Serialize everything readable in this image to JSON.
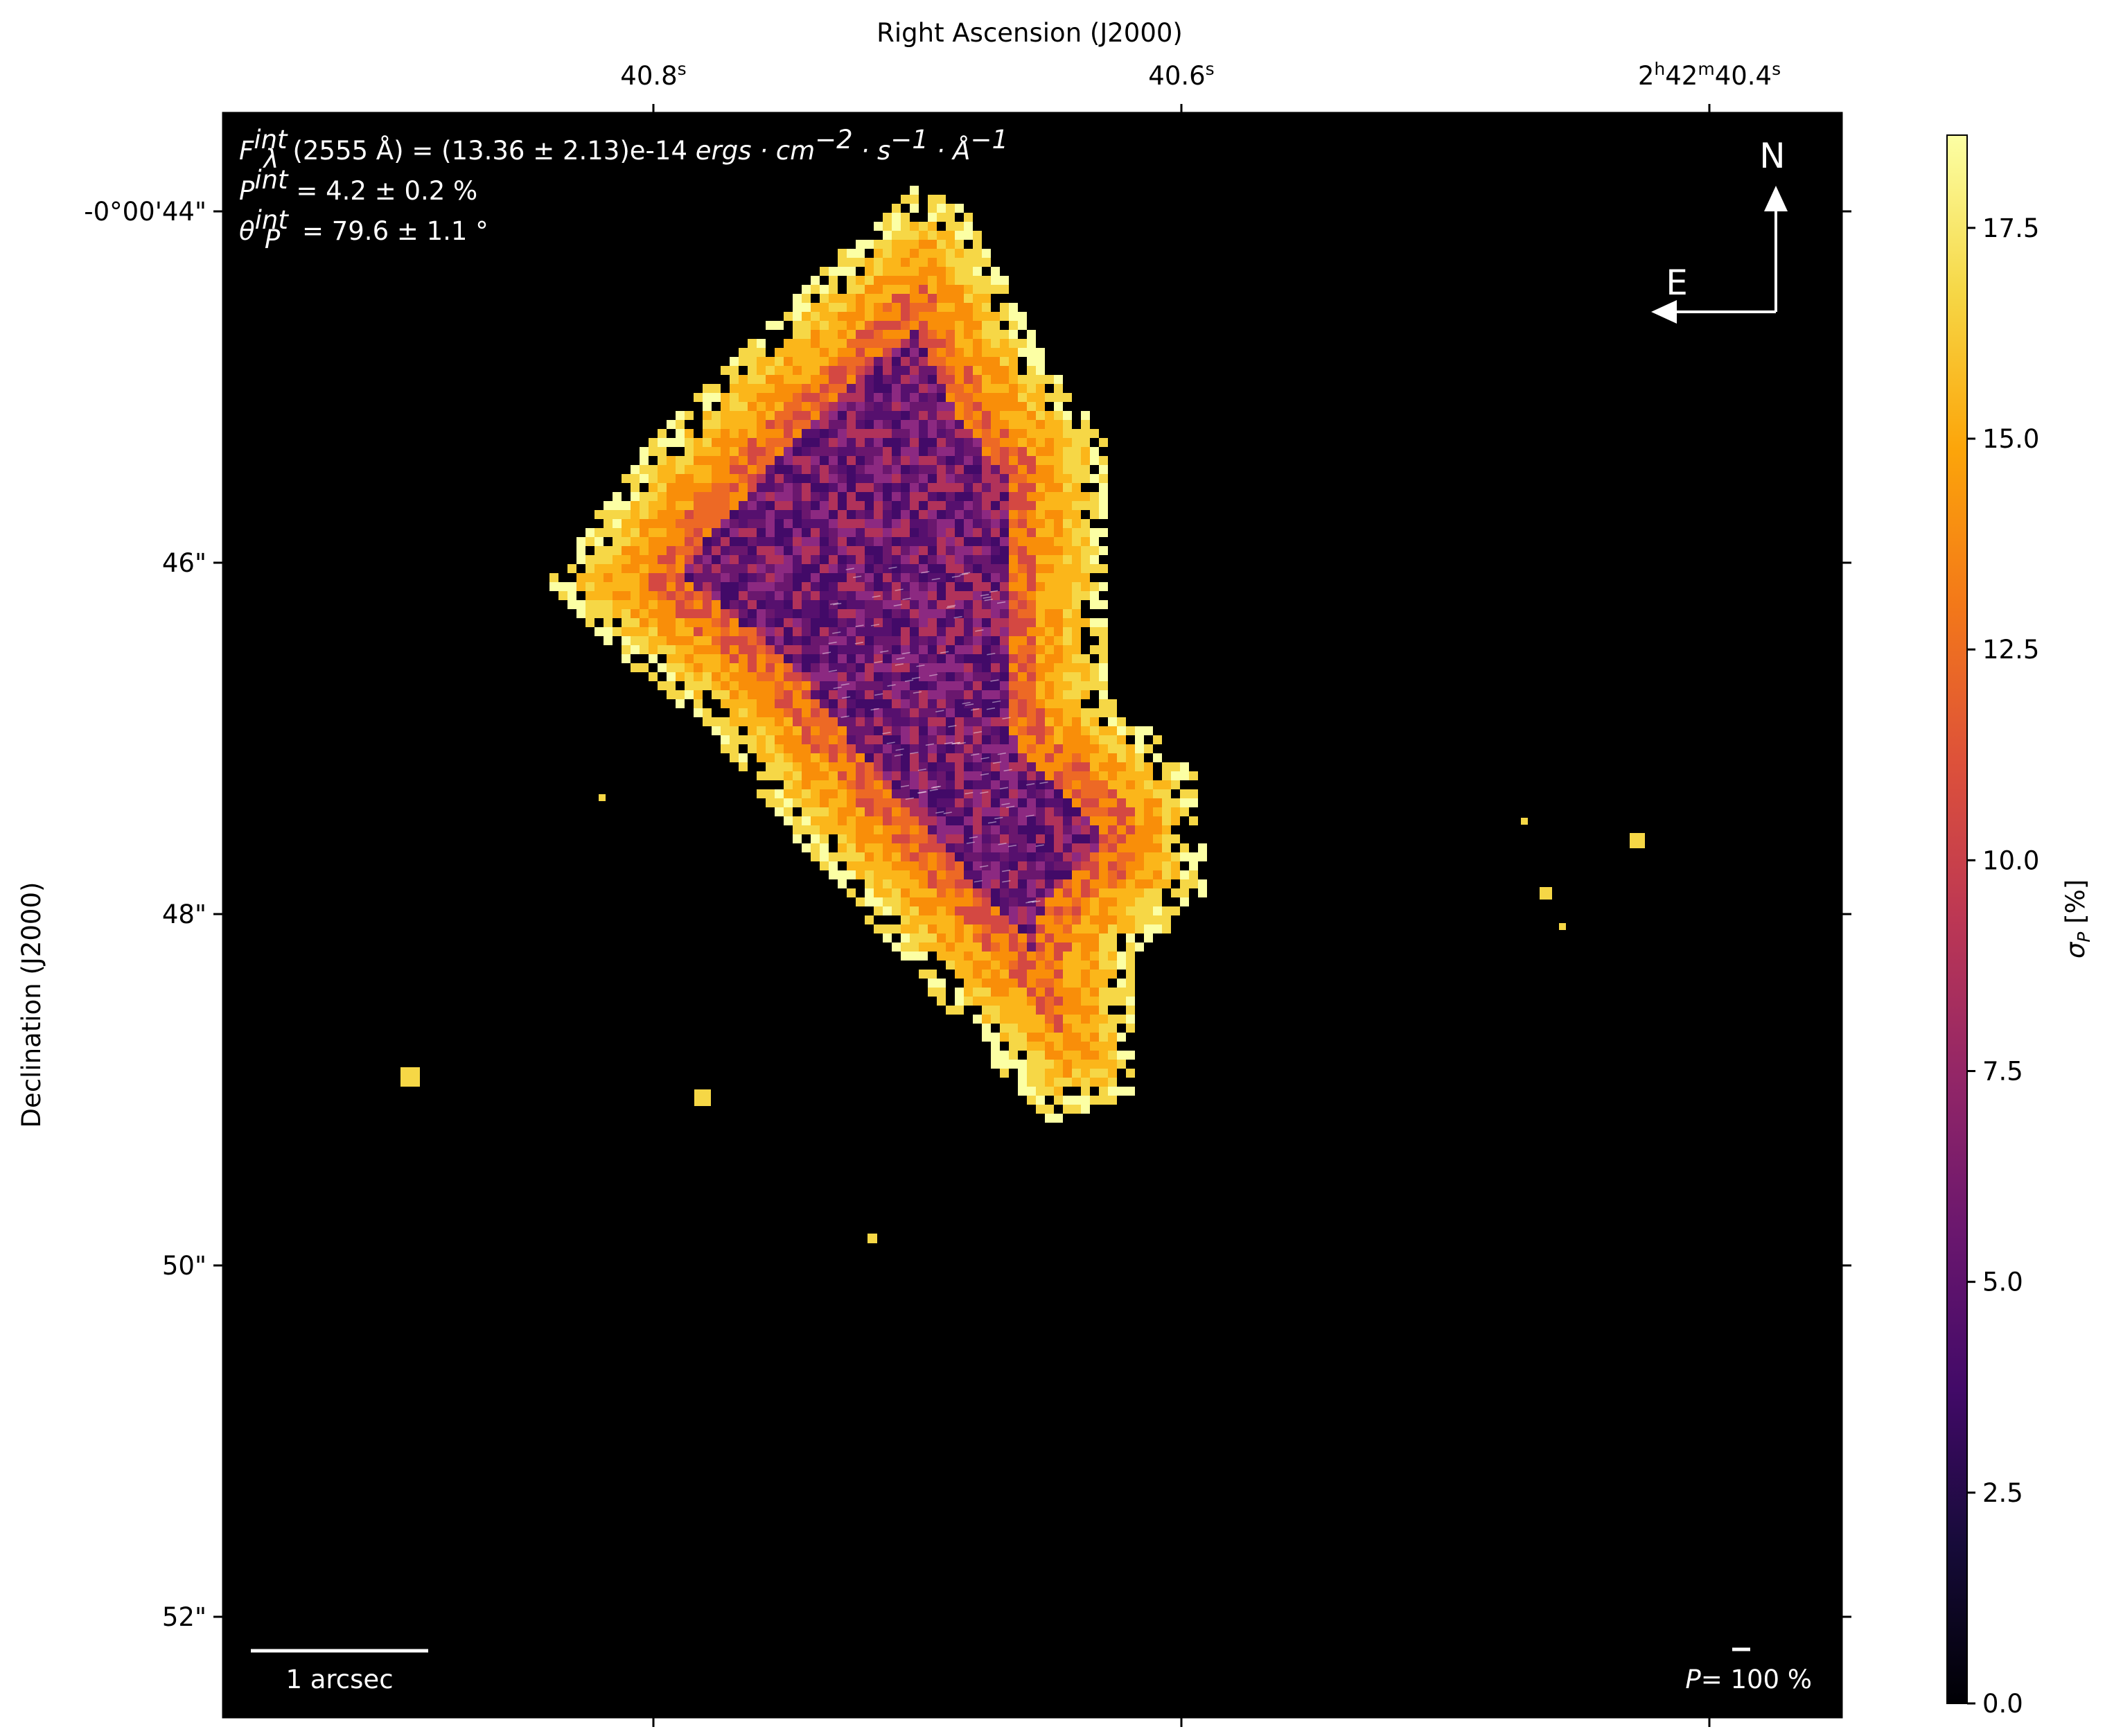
{
  "chart_data": {
    "type": "heatmap",
    "title": "",
    "xlabel": "Right Ascension (J2000)",
    "ylabel": "Declination (J2000)",
    "x_ticks": [
      {
        "label": "40.8",
        "sup": "s"
      },
      {
        "label": "40.6",
        "sup": "s"
      },
      {
        "label": "2h42m40.4",
        "sup": "s",
        "parts": [
          "2",
          "h",
          "42",
          "m",
          "40.4",
          "s"
        ]
      }
    ],
    "y_ticks": [
      "-0°00'44\"",
      "46\"",
      "48\"",
      "50\"",
      "52\""
    ],
    "colorbar": {
      "label": "σ_P [%]",
      "label_symbol": "σ",
      "label_sub": "P",
      "label_rest": " [%]",
      "ticks": [
        "0.0",
        "2.5",
        "5.0",
        "7.5",
        "10.0",
        "12.5",
        "15.0",
        "17.5"
      ],
      "range": [
        0.0,
        18.6
      ],
      "colormap": "inferno"
    },
    "annotations": {
      "flux_prefix": "F",
      "flux_sup": "int",
      "flux_sub": "λ",
      "flux_body": "(2555 Å) = (13.36 ± 2.13)e-14 ",
      "flux_units": "ergs · cm",
      "flux_units_exp1": "−2",
      "flux_units_mid": " · s",
      "flux_units_exp2": "−1",
      "flux_units_mid2": " · Å",
      "flux_units_exp3": "−1",
      "p_symbol": "P",
      "p_sup": "int",
      "p_value": " = 4.2 ± 0.2 %",
      "theta_symbol": "θ",
      "theta_sub": "P",
      "theta_sup": "int",
      "theta_value": " = 79.6 ± 1.1 °"
    },
    "compass": {
      "north": "N",
      "east": "E"
    },
    "scalebar": {
      "label": "1 arcsec"
    },
    "vector_scale": {
      "symbol": "P",
      "label": "= 100 %"
    },
    "background_color": "#000000"
  }
}
